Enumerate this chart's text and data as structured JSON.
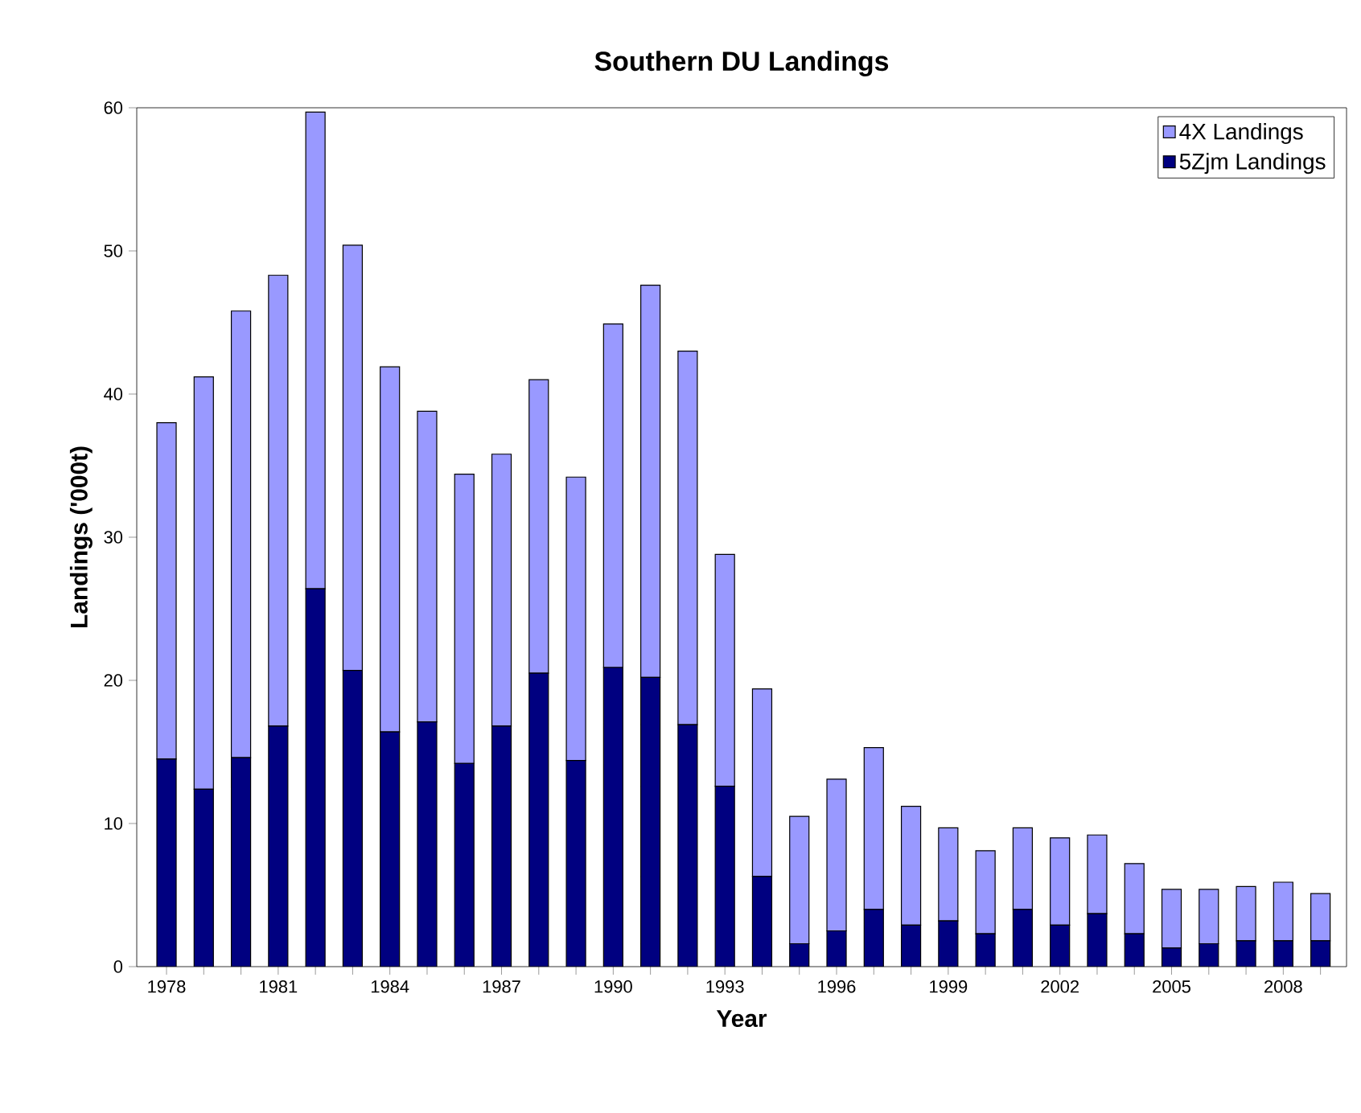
{
  "chart_data": {
    "type": "bar",
    "title": "Southern DU Landings",
    "xlabel": "Year",
    "ylabel": "Landings ('000t)",
    "categories": [
      "1978",
      null,
      null,
      "1981",
      null,
      null,
      "1984",
      null,
      null,
      "1987",
      null,
      null,
      "1990",
      null,
      null,
      "1993",
      null,
      null,
      "1996",
      null,
      null,
      "1999",
      null,
      null,
      "2002",
      null,
      null,
      "2005",
      null,
      null,
      "2008",
      null
    ],
    "stacked": true,
    "series": [
      {
        "name": "5Zjm Landings",
        "color": "#000080",
        "values": [
          14.5,
          12.4,
          14.6,
          16.8,
          26.4,
          20.7,
          16.4,
          17.1,
          14.2,
          16.8,
          20.5,
          14.4,
          20.9,
          20.2,
          16.9,
          12.6,
          6.3,
          1.6,
          2.5,
          4.0,
          2.9,
          3.2,
          2.3,
          4.0,
          2.9,
          3.7,
          2.3,
          1.3,
          1.6,
          1.8,
          1.8,
          1.8
        ]
      },
      {
        "name": "4X Landings",
        "color": "#9999ff",
        "values": [
          23.5,
          28.8,
          31.2,
          31.5,
          33.3,
          29.7,
          25.5,
          21.7,
          20.2,
          19.0,
          20.5,
          19.8,
          24.0,
          27.4,
          26.1,
          16.2,
          13.1,
          8.9,
          10.6,
          11.3,
          8.3,
          6.5,
          5.8,
          5.7,
          6.1,
          5.5,
          4.9,
          4.1,
          3.8,
          3.8,
          4.1,
          3.3
        ]
      }
    ],
    "ylim": [
      0,
      60
    ],
    "yticks": [
      0,
      10,
      20,
      30,
      40,
      50,
      60
    ],
    "grid": false,
    "legend": "top right"
  }
}
